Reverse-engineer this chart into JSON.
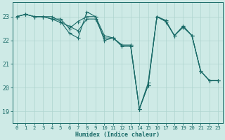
{
  "xlabel": "Humidex (Indice chaleur)",
  "bg_color": "#ceeae6",
  "line_color": "#1a6b68",
  "grid_color": "#aed4ce",
  "xlim": [
    -0.5,
    23.5
  ],
  "ylim": [
    18.5,
    23.6
  ],
  "yticks": [
    19,
    20,
    21,
    22,
    23
  ],
  "xticks": [
    0,
    1,
    2,
    3,
    4,
    5,
    6,
    7,
    8,
    9,
    10,
    11,
    12,
    13,
    14,
    15,
    16,
    17,
    18,
    19,
    20,
    21,
    22,
    23
  ],
  "series": [
    {
      "x": [
        0,
        1,
        2,
        3,
        4,
        5,
        6,
        7,
        8,
        9,
        10,
        11,
        12,
        13,
        14,
        15,
        16,
        17,
        18,
        19,
        20,
        21,
        22,
        23
      ],
      "y": [
        23.0,
        23.1,
        23.0,
        23.0,
        23.0,
        22.8,
        22.3,
        22.1,
        23.2,
        23.0,
        22.0,
        22.1,
        21.8,
        21.8,
        19.1,
        20.1,
        23.0,
        22.8,
        22.2,
        22.6,
        22.2,
        20.7,
        20.3,
        20.3
      ]
    },
    {
      "x": [
        0,
        1,
        2,
        3,
        4,
        5,
        6,
        7,
        8,
        9,
        10,
        11,
        12,
        13,
        14,
        15,
        16,
        17,
        18,
        19,
        20,
        21,
        22,
        23
      ],
      "y": [
        23.0,
        23.1,
        23.0,
        23.0,
        22.9,
        22.9,
        22.5,
        22.8,
        23.0,
        23.0,
        22.2,
        22.1,
        21.8,
        21.8,
        19.1,
        20.1,
        23.0,
        22.8,
        22.2,
        22.6,
        22.2,
        20.7,
        20.3,
        20.3
      ]
    },
    {
      "x": [
        0,
        1,
        2,
        3,
        4,
        5,
        6,
        7,
        8,
        9,
        10,
        11,
        12,
        13,
        14,
        15,
        16,
        17,
        18,
        19,
        20,
        21,
        22,
        23
      ],
      "y": [
        23.0,
        23.1,
        23.0,
        23.0,
        22.9,
        22.75,
        22.6,
        22.4,
        22.9,
        22.9,
        22.1,
        22.1,
        21.75,
        21.75,
        19.1,
        20.2,
        23.0,
        22.85,
        22.2,
        22.55,
        22.2,
        20.7,
        20.3,
        20.3
      ]
    }
  ],
  "xlabel_fontsize": 6.0,
  "xlabel_fontfamily": "monospace",
  "xlabel_fontweight": "bold",
  "tick_fontsize": 5.2,
  "ytick_fontsize": 6.0,
  "marker_size": 2.0,
  "linewidth": 0.8
}
